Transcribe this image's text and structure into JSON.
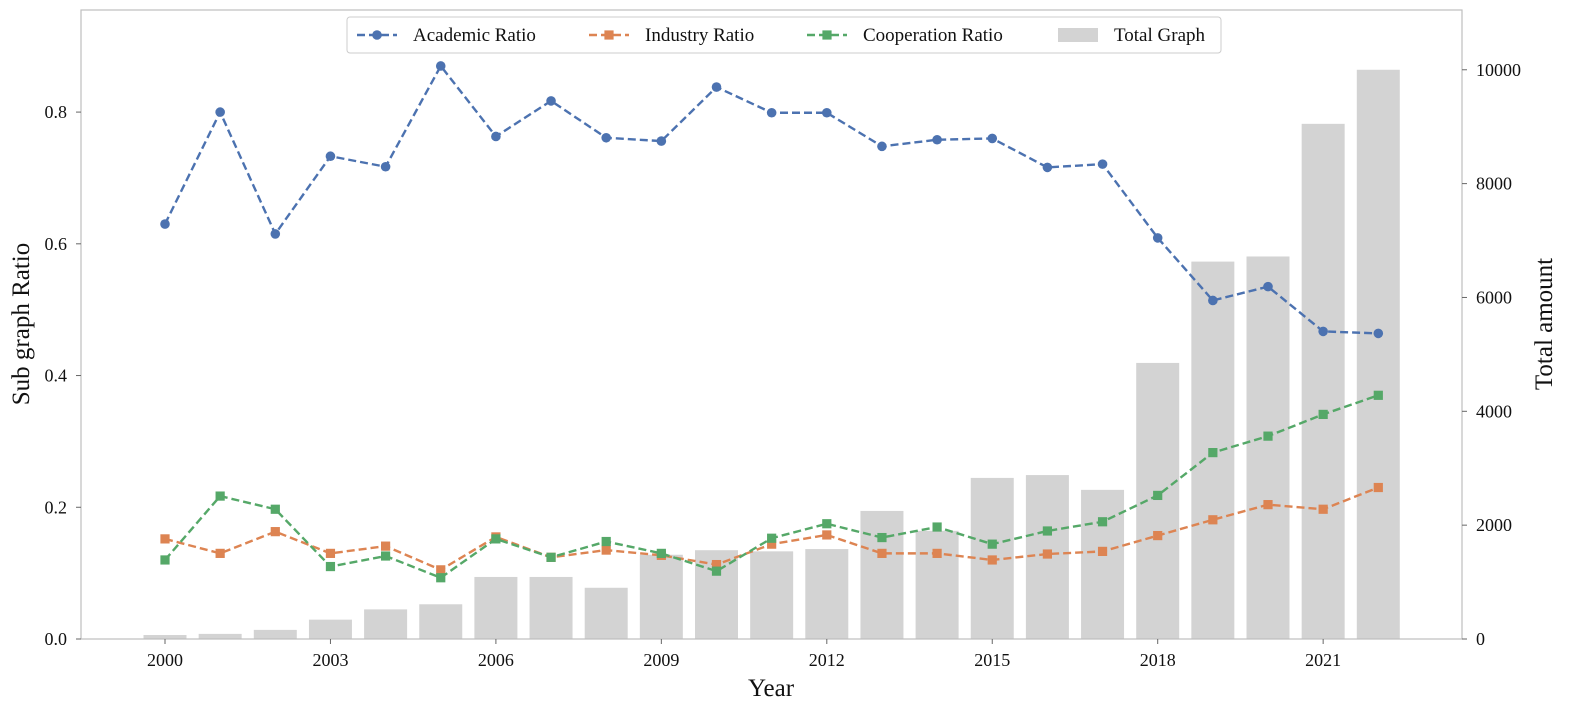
{
  "chart_data": {
    "type": "bar+line",
    "title": "",
    "xlabel": "Year",
    "ylabel_left": "Sub graph Ratio",
    "ylabel_right": "Total amount",
    "years": [
      2000,
      2001,
      2002,
      2003,
      2004,
      2005,
      2006,
      2007,
      2008,
      2009,
      2010,
      2011,
      2012,
      2013,
      2014,
      2015,
      2016,
      2017,
      2018,
      2019,
      2020,
      2021,
      2022
    ],
    "x_ticks": [
      2000,
      2003,
      2006,
      2009,
      2012,
      2015,
      2018,
      2021
    ],
    "ylim_left": [
      0,
      0.955
    ],
    "yticks_left": [
      "0.0",
      "0.2",
      "0.4",
      "0.6",
      "0.8"
    ],
    "ylim_right": [
      0,
      11050
    ],
    "yticks_right": [
      "0",
      "2000",
      "4000",
      "6000",
      "8000",
      "10000"
    ],
    "grid": false,
    "legend_position": "top-center",
    "series": [
      {
        "name": "Academic Ratio",
        "kind": "line",
        "axis": "left",
        "marker": "circle",
        "color": "#4c72b0",
        "values": [
          0.63,
          0.8,
          0.615,
          0.733,
          0.717,
          0.87,
          0.763,
          0.817,
          0.761,
          0.756,
          0.838,
          0.799,
          0.799,
          0.748,
          0.758,
          0.76,
          0.716,
          0.721,
          0.609,
          0.514,
          0.535,
          0.467,
          0.464
        ]
      },
      {
        "name": "Industry Ratio",
        "kind": "line",
        "axis": "left",
        "marker": "square",
        "color": "#dd8452",
        "values": [
          0.152,
          0.13,
          0.163,
          0.13,
          0.141,
          0.105,
          0.155,
          0.124,
          0.135,
          0.127,
          0.113,
          0.144,
          0.158,
          0.13,
          0.13,
          0.12,
          0.129,
          0.133,
          0.157,
          0.181,
          0.204,
          0.197,
          0.23
        ]
      },
      {
        "name": "Cooperation Ratio",
        "kind": "line",
        "axis": "left",
        "marker": "square",
        "color": "#55a868",
        "values": [
          0.12,
          0.217,
          0.197,
          0.11,
          0.126,
          0.093,
          0.152,
          0.124,
          0.148,
          0.13,
          0.103,
          0.153,
          0.175,
          0.154,
          0.17,
          0.144,
          0.164,
          0.178,
          0.218,
          0.283,
          0.308,
          0.341,
          0.37
        ]
      },
      {
        "name": "Total Graph",
        "kind": "bar",
        "axis": "right",
        "color": "#d3d3d3",
        "values": [
          70,
          90,
          160,
          340,
          520,
          610,
          1090,
          1090,
          900,
          1480,
          1560,
          1540,
          1580,
          2250,
          1900,
          2830,
          2880,
          2620,
          4850,
          6630,
          6720,
          9050,
          10000
        ]
      }
    ]
  }
}
